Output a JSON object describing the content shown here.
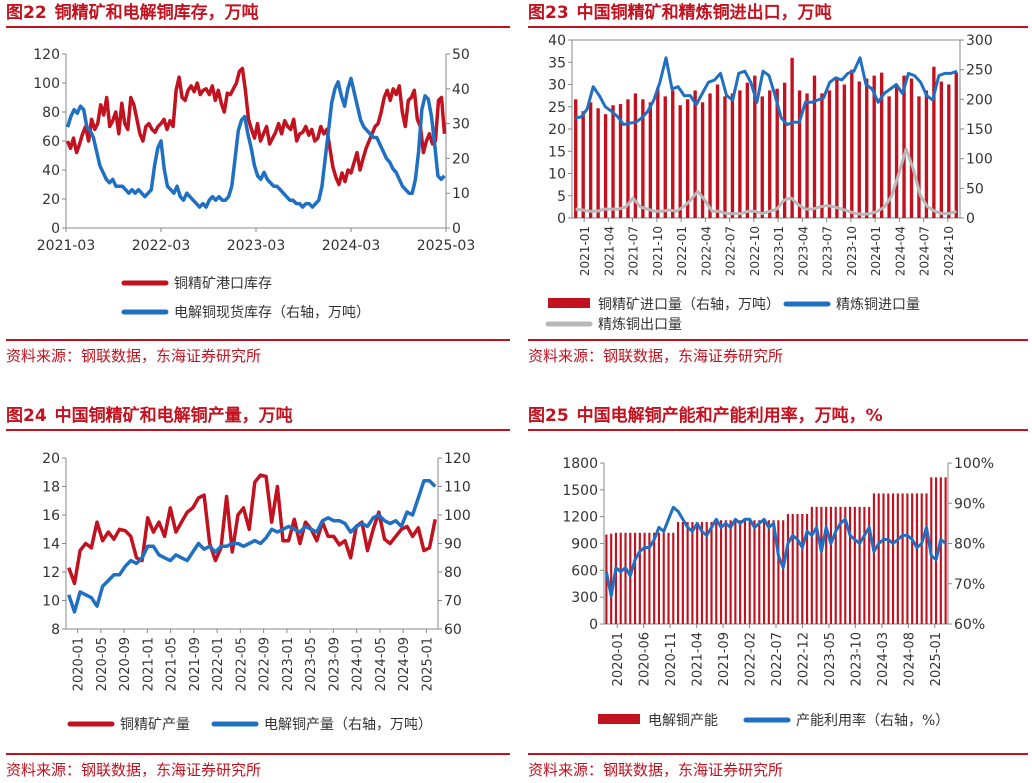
{
  "colors": {
    "red": "#c3121f",
    "blue": "#1f6fc2",
    "gray": "#b8b8b8",
    "axis": "#444444"
  },
  "panels": [
    {
      "num": "图22",
      "title": "铜精矿和电解铜库存，万吨",
      "source": "资料来源：钢联数据，东海证券研究所"
    },
    {
      "num": "图23",
      "title": "中国铜精矿和精炼铜进出口，万吨",
      "source": "资料来源：钢联数据，东海证券研究所"
    },
    {
      "num": "图24",
      "title": "中国铜精矿和电解铜产量，万吨",
      "source": "资料来源：钢联数据，东海证券研究所"
    },
    {
      "num": "图25",
      "title": "中国电解铜产能和产能利用率，万吨，%",
      "source": "资料来源：钢联数据，东海证券研究所"
    }
  ],
  "chart_data": [
    {
      "type": "line",
      "title": "铜精矿和电解铜库存，万吨",
      "x_ticks": [
        "2021-03",
        "2022-03",
        "2023-03",
        "2024-03",
        "2025-03"
      ],
      "ylim_left": [
        0,
        120
      ],
      "yticks_left": [
        0,
        20,
        40,
        60,
        80,
        100,
        120
      ],
      "ylim_right": [
        0,
        50
      ],
      "yticks_right": [
        0,
        10,
        20,
        30,
        40,
        50
      ],
      "series": [
        {
          "name": "铜精矿港口库存",
          "axis": "left",
          "color": "#c3121f",
          "values": [
            60,
            55,
            62,
            52,
            58,
            65,
            70,
            60,
            75,
            68,
            72,
            85,
            78,
            90,
            70,
            74,
            80,
            65,
            86,
            72,
            68,
            90,
            85,
            75,
            65,
            60,
            70,
            72,
            68,
            66,
            70,
            72,
            75,
            68,
            74,
            70,
            95,
            104,
            90,
            88,
            95,
            98,
            94,
            100,
            92,
            95,
            96,
            92,
            98,
            88,
            95,
            86,
            80,
            93,
            92,
            96,
            100,
            108,
            110,
            95,
            75,
            68,
            62,
            72,
            60,
            65,
            70,
            58,
            62,
            66,
            72,
            65,
            74,
            70,
            68,
            75,
            60,
            65,
            66,
            70,
            64,
            68,
            60,
            62,
            70,
            65,
            68,
            55,
            42,
            35,
            30,
            38,
            32,
            40,
            38,
            45,
            52,
            40,
            48,
            55,
            60,
            65,
            70,
            72,
            80,
            90,
            95,
            88,
            96,
            92,
            98,
            80,
            70,
            88,
            90,
            95,
            75,
            70,
            52,
            60,
            65,
            58,
            60,
            88,
            90,
            65
          ]
        },
        {
          "name": "电解铜现货库存（右轴，万吨）",
          "axis": "right",
          "color": "#1f6fc2",
          "values": [
            29,
            32,
            34,
            33,
            35,
            34,
            29,
            28,
            26,
            22,
            18,
            16,
            14,
            13,
            14,
            12,
            12,
            12,
            11,
            10,
            11,
            10,
            11,
            10,
            9,
            10,
            11,
            18,
            23,
            25,
            17,
            12,
            11,
            10,
            12,
            9,
            8,
            10,
            9,
            8,
            7,
            6,
            7,
            6,
            8,
            9,
            8,
            9,
            8,
            8,
            9,
            12,
            20,
            28,
            31,
            32,
            27,
            23,
            18,
            15,
            14,
            16,
            14,
            13,
            12,
            12,
            11,
            10,
            9,
            8,
            8,
            7,
            7,
            6,
            7,
            7,
            6,
            7,
            8,
            12,
            20,
            28,
            36,
            40,
            42,
            38,
            35,
            40,
            43,
            39,
            35,
            31,
            29,
            28,
            27,
            26,
            26,
            24,
            22,
            20,
            19,
            17,
            16,
            14,
            12,
            11,
            10,
            10,
            14,
            22,
            34,
            38,
            37,
            32,
            24,
            15,
            14,
            15
          ]
        }
      ],
      "legend": "bottom"
    },
    {
      "type": "bar+line",
      "title": "中国铜精矿和精炼铜进出口，万吨",
      "x_ticks": [
        "2021-01",
        "2021-04",
        "2021-07",
        "2021-10",
        "2022-01",
        "2022-04",
        "2022-07",
        "2022-10",
        "2023-01",
        "2023-04",
        "2023-07",
        "2023-10",
        "2024-01",
        "2024-04",
        "2024-07",
        "2024-10"
      ],
      "ylim_left": [
        0,
        40
      ],
      "yticks_left": [
        0,
        5,
        10,
        15,
        20,
        25,
        30,
        35,
        40
      ],
      "ylim_right": [
        0,
        300
      ],
      "yticks_right": [
        0,
        50,
        100,
        150,
        200,
        250,
        300
      ],
      "series": [
        {
          "name": "铜精矿进口量（右轴，万吨）",
          "kind": "bar",
          "axis": "right",
          "color": "#c3121f",
          "values": [
            200,
            180,
            195,
            185,
            175,
            190,
            192,
            200,
            210,
            200,
            195,
            220,
            205,
            215,
            190,
            200,
            215,
            195,
            210,
            225,
            205,
            210,
            215,
            228,
            240,
            205,
            215,
            218,
            228,
            270,
            215,
            210,
            240,
            210,
            215,
            235,
            225,
            250,
            230,
            235,
            240,
            245,
            205,
            225,
            240,
            235,
            205,
            215,
            255,
            230,
            225,
            245
          ]
        },
        {
          "name": "精炼铜进口量",
          "kind": "line",
          "axis": "left",
          "color": "#1f6fc2",
          "values": [
            22.5,
            22.7,
            24.5,
            29.5,
            27.5,
            25,
            24,
            22.8,
            21,
            21.3,
            21.5,
            22.5,
            24,
            26.5,
            30.5,
            36,
            29,
            29.5,
            27.5,
            27.5,
            25.5,
            28,
            30.5,
            31,
            32.5,
            27.5,
            26.5,
            32.5,
            33,
            30.5,
            26,
            33,
            32,
            27.5,
            22.5,
            21,
            21.5,
            21.5,
            26,
            26,
            26.5,
            27,
            30.5,
            31.5,
            31,
            32.5,
            33,
            36,
            30,
            29,
            26,
            28,
            29,
            30,
            28,
            32.5,
            32,
            30.5,
            27.5,
            26.5,
            32,
            32.5,
            32.5,
            33
          ]
        },
        {
          "name": "精炼铜出口量",
          "kind": "line",
          "axis": "left",
          "color": "#b8b8b8",
          "values": [
            2,
            1.8,
            1.5,
            1.5,
            2,
            2,
            2,
            2.5,
            4.5,
            2.5,
            2,
            1.5,
            1.5,
            1.8,
            1.5,
            2.5,
            4,
            6,
            4,
            1.5,
            1.5,
            1,
            1,
            1,
            1.5,
            1.5,
            1,
            1.5,
            2,
            4,
            4.5,
            3,
            2,
            2,
            2.5,
            2.8,
            2.5,
            2,
            1.5,
            1,
            0.8,
            1,
            1.5,
            2.5,
            5,
            10,
            15.5,
            11,
            5,
            2.5,
            1.5,
            1,
            1,
            1.5
          ]
        }
      ],
      "legend": "bottom"
    },
    {
      "type": "line",
      "title": "中国铜精矿和电解铜产量，万吨",
      "x_ticks": [
        "2020-01",
        "2020-05",
        "2020-09",
        "2021-01",
        "2021-05",
        "2021-09",
        "2022-01",
        "2022-05",
        "2022-09",
        "2023-01",
        "2023-05",
        "2023-09",
        "2024-01",
        "2024-05",
        "2024-09",
        "2025-01"
      ],
      "ylim_left": [
        8,
        20
      ],
      "yticks_left": [
        8,
        10,
        12,
        14,
        16,
        18,
        20
      ],
      "ylim_right": [
        60,
        120
      ],
      "yticks_right": [
        60,
        70,
        80,
        90,
        100,
        110,
        120
      ],
      "series": [
        {
          "name": "铜精矿产量",
          "axis": "left",
          "color": "#c3121f",
          "values": [
            12.3,
            11.2,
            13.5,
            14,
            13.7,
            15.5,
            14.2,
            14.8,
            14.3,
            15,
            14.9,
            14.5,
            13,
            12.8,
            15.8,
            14.8,
            15.5,
            14.5,
            16.5,
            14.8,
            15.5,
            16.2,
            16.5,
            17.2,
            17.4,
            14,
            12.8,
            13.7,
            17.3,
            13.4,
            16,
            16.5,
            15,
            18.3,
            18.8,
            18.7,
            15.5,
            18,
            14.2,
            14.2,
            15.7,
            14,
            15.5,
            15,
            14.2,
            15.5,
            14.5,
            14.5,
            13.9,
            14.2,
            13,
            15.2,
            15.5,
            13.5,
            15,
            16.2,
            14.3,
            14,
            14.5,
            15,
            15.2,
            14.5,
            15.1,
            13.5,
            13.7,
            15.7
          ]
        },
        {
          "name": "电解铜产量（右轴，万吨）",
          "axis": "right",
          "color": "#1f6fc2",
          "values": [
            72,
            66,
            73,
            72,
            71,
            68,
            75,
            77,
            79,
            79,
            82,
            84,
            83,
            85,
            89,
            89,
            86,
            85,
            84,
            86,
            85,
            84,
            87,
            90,
            88,
            89,
            87,
            89,
            89,
            90,
            90,
            89,
            90,
            91,
            90,
            92,
            95,
            94,
            95,
            96,
            95,
            94,
            96,
            95,
            94,
            98,
            99,
            98,
            98,
            97,
            94,
            96,
            97,
            96,
            99,
            100,
            98,
            97,
            98,
            96,
            101,
            100,
            106,
            112,
            112,
            110
          ]
        }
      ],
      "legend": "bottom"
    },
    {
      "type": "bar+line",
      "title": "中国电解铜产能和产能利用率，万吨，%",
      "x_ticks": [
        "2020-01",
        "2020-06",
        "2020-11",
        "2021-04",
        "2021-09",
        "2022-02",
        "2022-07",
        "2022-12",
        "2023-05",
        "2023-10",
        "2024-03",
        "2024-08",
        "2025-01"
      ],
      "ylim_left": [
        0,
        1800
      ],
      "yticks_left": [
        0,
        300,
        600,
        900,
        1200,
        1500,
        1800
      ],
      "ylim_right": [
        60,
        100
      ],
      "yticks_right": [
        "60%",
        "70%",
        "80%",
        "90%",
        "100%"
      ],
      "series": [
        {
          "name": "电解铜产能",
          "kind": "bar",
          "axis": "left",
          "color": "#c3121f",
          "values": [
            1000,
            1010,
            1020,
            1020,
            1020,
            1020,
            1020,
            1020,
            1020,
            1020,
            1020,
            1020,
            1020,
            1020,
            1020,
            1140,
            1140,
            1140,
            1140,
            1140,
            1140,
            1140,
            1140,
            1160,
            1160,
            1160,
            1160,
            1160,
            1160,
            1160,
            1160,
            1160,
            1160,
            1160,
            1160,
            1160,
            1160,
            1160,
            1230,
            1230,
            1230,
            1230,
            1230,
            1310,
            1310,
            1310,
            1310,
            1310,
            1310,
            1310,
            1310,
            1310,
            1310,
            1310,
            1310,
            1310,
            1460,
            1460,
            1460,
            1460,
            1460,
            1460,
            1460,
            1460,
            1460,
            1460,
            1460,
            1460,
            1640,
            1640,
            1640,
            1640
          ]
        },
        {
          "name": "产能利用率（右轴，%）",
          "kind": "line",
          "axis": "right",
          "color": "#1f6fc2",
          "values": [
            73,
            67,
            74,
            73,
            74,
            72,
            76,
            78,
            79,
            79,
            81,
            84,
            83,
            86,
            89,
            88,
            86,
            84,
            83,
            85,
            83,
            82,
            84,
            86,
            84,
            85,
            84,
            86,
            85,
            86,
            86,
            84,
            85,
            86,
            84,
            85,
            77,
            74,
            80,
            82,
            81,
            79,
            83,
            82,
            84,
            78,
            84,
            80,
            83,
            85,
            86,
            82,
            81,
            80,
            82,
            84,
            78,
            80,
            81,
            81,
            80,
            81,
            82,
            82,
            81,
            79,
            80,
            84,
            77,
            76,
            81,
            80
          ]
        }
      ],
      "legend": "bottom"
    }
  ]
}
